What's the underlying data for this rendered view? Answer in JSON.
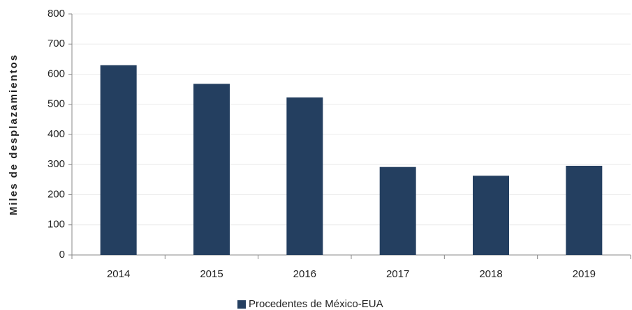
{
  "chart_data": {
    "type": "bar",
    "categories": [
      "2014",
      "2015",
      "2016",
      "2017",
      "2018",
      "2019"
    ],
    "series": [
      {
        "name": "Procedentes de México-EUA",
        "color": "#243f60",
        "values": [
          630,
          568,
          523,
          292,
          263,
          296
        ]
      }
    ],
    "y_label": "Miles de desplazamientos",
    "ylim": [
      0,
      800
    ],
    "yticks": [
      0,
      100,
      200,
      300,
      400,
      500,
      600,
      700,
      800
    ],
    "grid": true,
    "legend": "bottom"
  }
}
